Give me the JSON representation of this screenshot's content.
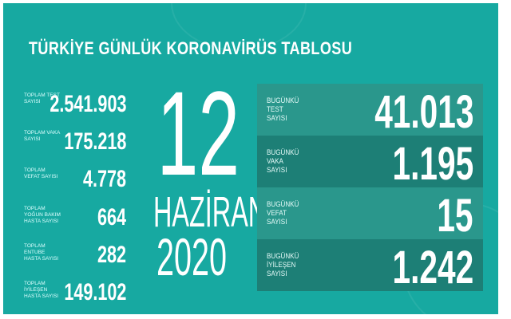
{
  "title": "TÜRKİYE GÜNLÜK KORONAVİRÜS TABLOSU",
  "date": {
    "day": "12",
    "month": "HAZİRAN",
    "year": "2020"
  },
  "totals": [
    {
      "label": "TOPLAM TEST SAYISI",
      "value": "2.541.903"
    },
    {
      "label": "TOPLAM VAKA SAYISI",
      "value": "175.218"
    },
    {
      "label": "TOPLAM VEFAT SAYISI",
      "value": "4.778"
    },
    {
      "label": "TOPLAM YOĞUN BAKIM HASTA SAYISI",
      "value": "664"
    },
    {
      "label": "TOPLAM ENTUBE HASTA SAYISI",
      "value": "282"
    },
    {
      "label": "TOPLAM İYİLEŞEN HASTA SAYISI",
      "value": "149.102"
    }
  ],
  "today": [
    {
      "label": "BUGÜNKÜ TEST SAYISI",
      "value": "41.013"
    },
    {
      "label": "BUGÜNKÜ VAKA SAYISI",
      "value": "1.195"
    },
    {
      "label": "BUGÜNKÜ VEFAT SAYISI",
      "value": "15"
    },
    {
      "label": "BUGÜNKÜ İYİLEŞEN SAYISI",
      "value": "1.242"
    }
  ],
  "colors": {
    "background": "#17a9a1",
    "panel_light": "#2a978c",
    "panel_dark": "#1d7f76"
  }
}
